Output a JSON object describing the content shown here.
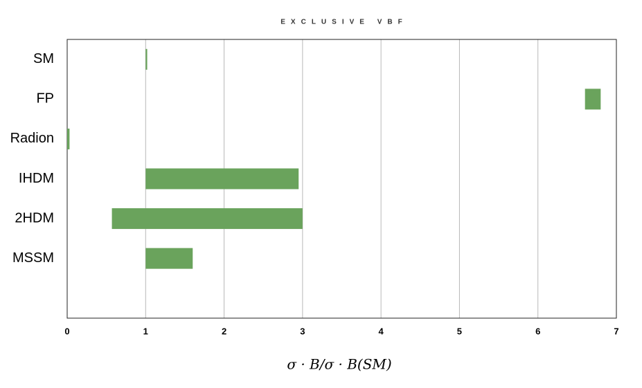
{
  "chart_data": {
    "type": "range-bar",
    "title": "EXCLUSIVE VBF",
    "x_label": "σ · B/σ · B(SM)",
    "categories": [
      "SM",
      "FP",
      "Radion",
      "IHDM",
      "2HDM",
      "MSSM"
    ],
    "low": [
      1.0,
      6.6,
      0.0,
      1.0,
      0.57,
      1.0
    ],
    "high": [
      1.02,
      6.8,
      0.03,
      2.95,
      3.0,
      1.6
    ],
    "color": "#6aa35c",
    "xlim": [
      0,
      7
    ],
    "xticks": [
      0,
      1,
      2,
      3,
      4,
      5,
      6,
      7
    ],
    "grid": true
  }
}
